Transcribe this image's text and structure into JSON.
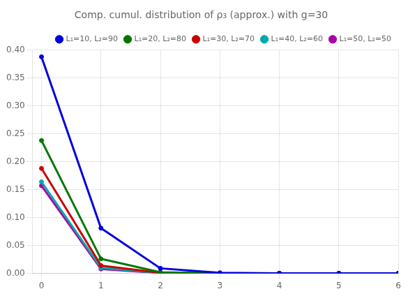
{
  "chart_data": {
    "type": "line",
    "title": "Comp. cumul. distribution of ρ₃ (approx.) with g=30",
    "xlim": [
      -0.15,
      6
    ],
    "xticks": [
      0,
      1,
      2,
      3,
      4,
      5,
      6
    ],
    "ylim": [
      0,
      0.4
    ],
    "yticks": [
      {
        "value": 0.0,
        "label": "0.00"
      },
      {
        "value": 0.05,
        "label": "0.05"
      },
      {
        "value": 0.1,
        "label": "0.10"
      },
      {
        "value": 0.15,
        "label": "0.15"
      },
      {
        "value": 0.2,
        "label": "0.20"
      },
      {
        "value": 0.25,
        "label": "0.25"
      },
      {
        "value": 0.3,
        "label": "0.30"
      },
      {
        "value": 0.35,
        "label": "0.35"
      },
      {
        "value": 0.4,
        "label": "0.40"
      }
    ],
    "grid": true,
    "legend": "upper right",
    "marker": "circle",
    "x": [
      0,
      1,
      2,
      3,
      4,
      5,
      6
    ],
    "series": [
      {
        "name": "L₁=10, L₂=90",
        "color": "#0000dd",
        "values": [
          0.388,
          0.081,
          0.009,
          0.001,
          0.0001,
          2e-05,
          1e-06
        ]
      },
      {
        "name": "L₁=20, L₂=80",
        "color": "#007700",
        "values": [
          0.238,
          0.026,
          0.002,
          0.0002,
          1e-05,
          1e-06,
          1e-07
        ]
      },
      {
        "name": "L₁=30, L₂=70",
        "color": "#cc0000",
        "values": [
          0.188,
          0.014,
          0.001,
          0.0001,
          1e-05,
          1e-06,
          1e-07
        ]
      },
      {
        "name": "L₁=40, L₂=60",
        "color": "#00aaaa",
        "values": [
          0.164,
          0.01,
          0.0007,
          5e-05,
          3e-06,
          2e-07,
          1e-08
        ]
      },
      {
        "name": "L₁=50, L₂=50",
        "color": "#aa00aa",
        "values": [
          0.157,
          0.008,
          0.0005,
          3e-05,
          2e-06,
          1e-07,
          1e-08
        ]
      }
    ]
  }
}
